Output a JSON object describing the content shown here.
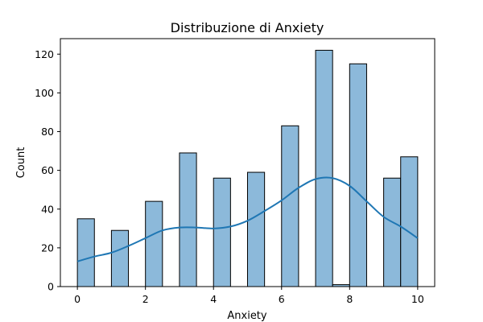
{
  "chart_data": {
    "type": "bar",
    "title": "Distribuzione di Anxiety",
    "xlabel": "Anxiety",
    "ylabel": "Count",
    "xlim": [
      -0.5,
      10.5
    ],
    "ylim": [
      0,
      128
    ],
    "xticks": [
      0,
      2,
      4,
      6,
      8,
      10
    ],
    "yticks": [
      0,
      20,
      40,
      60,
      80,
      100,
      120
    ],
    "bin_width": 0.5,
    "bins": [
      {
        "x0": 0.0,
        "x1": 0.5,
        "count": 35
      },
      {
        "x0": 0.5,
        "x1": 1.0,
        "count": 0
      },
      {
        "x0": 1.0,
        "x1": 1.5,
        "count": 29
      },
      {
        "x0": 1.5,
        "x1": 2.0,
        "count": 0
      },
      {
        "x0": 2.0,
        "x1": 2.5,
        "count": 44
      },
      {
        "x0": 2.5,
        "x1": 3.0,
        "count": 0
      },
      {
        "x0": 3.0,
        "x1": 3.5,
        "count": 69
      },
      {
        "x0": 3.5,
        "x1": 4.0,
        "count": 0
      },
      {
        "x0": 4.0,
        "x1": 4.5,
        "count": 56
      },
      {
        "x0": 4.5,
        "x1": 5.0,
        "count": 0
      },
      {
        "x0": 5.0,
        "x1": 5.5,
        "count": 59
      },
      {
        "x0": 5.5,
        "x1": 6.0,
        "count": 0
      },
      {
        "x0": 6.0,
        "x1": 6.5,
        "count": 83
      },
      {
        "x0": 6.5,
        "x1": 7.0,
        "count": 0
      },
      {
        "x0": 7.0,
        "x1": 7.5,
        "count": 122
      },
      {
        "x0": 7.5,
        "x1": 8.0,
        "count": 1
      },
      {
        "x0": 8.0,
        "x1": 8.5,
        "count": 115
      },
      {
        "x0": 8.5,
        "x1": 9.0,
        "count": 0
      },
      {
        "x0": 9.0,
        "x1": 9.5,
        "count": 56
      },
      {
        "x0": 9.5,
        "x1": 10.0,
        "count": 67
      }
    ],
    "kde_curve": {
      "x": [
        0,
        0.5,
        1.0,
        1.5,
        2.0,
        2.5,
        3.0,
        3.5,
        4.0,
        4.5,
        5.0,
        5.5,
        6.0,
        6.5,
        7.0,
        7.5,
        8.0,
        8.5,
        9.0,
        9.5,
        10.0
      ],
      "y": [
        13,
        15.5,
        17.5,
        21,
        25,
        29,
        30.5,
        30.5,
        30,
        31,
        34,
        39,
        44.5,
        51,
        55.5,
        56,
        52,
        44,
        36,
        31,
        25
      ]
    },
    "bar_color": "#8cb9da",
    "line_color": "#1f77b4",
    "grid": false,
    "legend": "none"
  }
}
